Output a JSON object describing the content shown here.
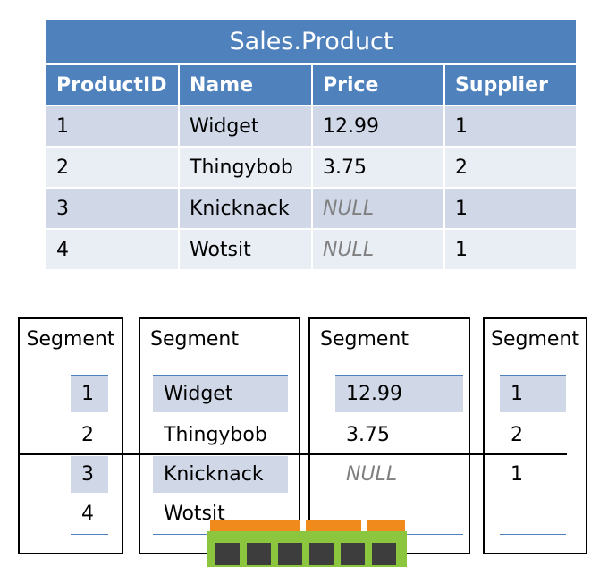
{
  "table": {
    "title": "Sales.Product",
    "headers": [
      "ProductID",
      "Name",
      "Price",
      "Supplier"
    ],
    "rows": [
      [
        "1",
        "Widget",
        "12.99",
        "1"
      ],
      [
        "2",
        "Thingybob",
        "3.75",
        "2"
      ],
      [
        "3",
        "Knicknack",
        "NULL",
        "1"
      ],
      [
        "4",
        "Wotsit",
        "NULL",
        "1"
      ]
    ]
  },
  "segments": {
    "label": "Segment",
    "productid_values": [
      "1",
      "2",
      "3",
      "4"
    ],
    "name_values": [
      "Widget",
      "Thingybob",
      "Knicknack",
      "Wotsit"
    ],
    "price_values": [
      "12.99",
      "3.75",
      "NULL"
    ],
    "supplier_values": [
      "1",
      "2",
      "1"
    ]
  },
  "colors": {
    "header_blue": "#4f81bd",
    "row_dark": "#d0d8e8",
    "row_light": "#e9edf4",
    "chip_green": "#8cc63f",
    "chip_orange": "#f08a1c"
  },
  "icons": {
    "memory_chip": "memory-chip-icon"
  }
}
